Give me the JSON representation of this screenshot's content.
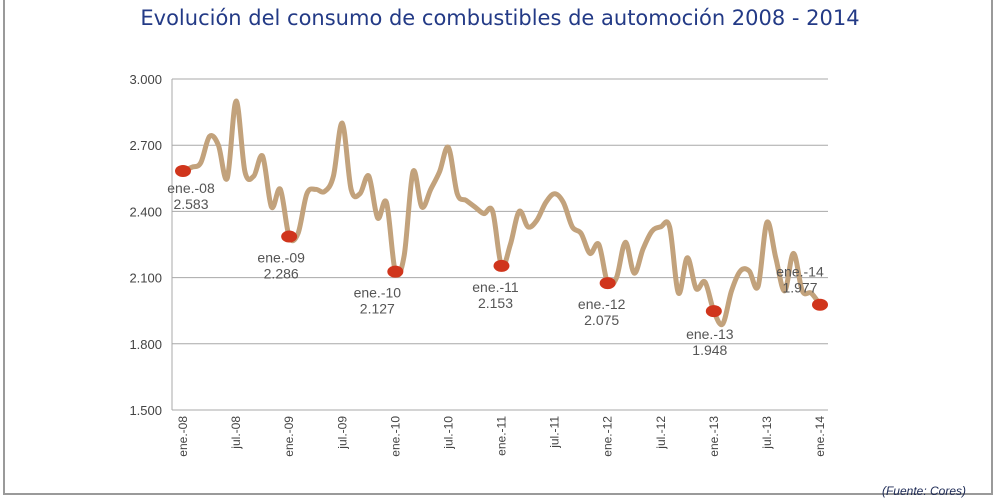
{
  "chart_data": {
    "type": "line",
    "title": "Evolución del consumo de combustibles de automoción 2008 - 2014",
    "source": "(Fuente: Cores)",
    "xlabel": "",
    "ylabel": "",
    "ylim": [
      1500,
      3000
    ],
    "yticks": [
      "3.000",
      "2.700",
      "2.400",
      "2.100",
      "1.800",
      "1.500"
    ],
    "ytick_values": [
      3000,
      2700,
      2400,
      2100,
      1800,
      1500
    ],
    "xticks": [
      "ene.-08",
      "jul.-08",
      "ene.-09",
      "jul.-09",
      "ene.-10",
      "jul.-10",
      "ene.-11",
      "jul.-11",
      "ene.-12",
      "jul.-12",
      "ene.-13",
      "jul.-13",
      "ene.-14"
    ],
    "grid": true,
    "line_color": "#c2a27c",
    "marker_color": "#d0351c",
    "values": [
      2583,
      2600,
      2620,
      2740,
      2700,
      2550,
      2900,
      2580,
      2560,
      2650,
      2420,
      2500,
      2286,
      2300,
      2480,
      2500,
      2490,
      2560,
      2800,
      2500,
      2480,
      2560,
      2370,
      2440,
      2127,
      2200,
      2580,
      2420,
      2500,
      2580,
      2690,
      2480,
      2450,
      2420,
      2390,
      2400,
      2153,
      2250,
      2400,
      2330,
      2360,
      2440,
      2480,
      2440,
      2330,
      2300,
      2210,
      2250,
      2075,
      2100,
      2260,
      2120,
      2230,
      2310,
      2330,
      2330,
      2030,
      2190,
      2050,
      2080,
      1948,
      1890,
      2040,
      2130,
      2130,
      2060,
      2350,
      2190,
      2040,
      2210,
      2040,
      2030,
      1977
    ],
    "annotations": [
      {
        "month_index": 0,
        "label": "ene.-08",
        "value": "2.583"
      },
      {
        "month_index": 12,
        "label": "ene.-09",
        "value": "2.286"
      },
      {
        "month_index": 24,
        "label": "ene.-10",
        "value": "2.127"
      },
      {
        "month_index": 36,
        "label": "ene.-11",
        "value": "2.153"
      },
      {
        "month_index": 48,
        "label": "ene.-12",
        "value": "2.075"
      },
      {
        "month_index": 60,
        "label": "ene.-13",
        "value": "1.948"
      },
      {
        "month_index": 72,
        "label": "ene.-14",
        "value": "1.977"
      }
    ]
  }
}
